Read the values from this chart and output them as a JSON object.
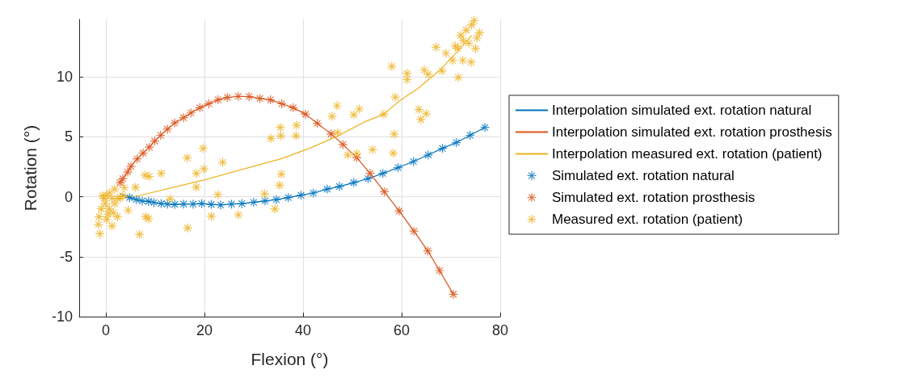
{
  "chart_data": {
    "type": "scatter",
    "xlabel": "Flexion (°)",
    "ylabel": "Rotation (°)",
    "xlim": [
      -5.4,
      80
    ],
    "ylim": [
      -10,
      14.8
    ],
    "xticks": [
      0,
      20,
      40,
      60,
      80
    ],
    "yticks": [
      -10,
      -5,
      0,
      5,
      10
    ],
    "grid": true,
    "legend": "right",
    "marker": "star",
    "series": [
      {
        "name": "Interpolation simulated ext. rotation natural",
        "type": "line",
        "marker": "none",
        "color": "#0072bd",
        "x": [
          2.9,
          4.82,
          6.2,
          7.4,
          8.66,
          9.76,
          11.24,
          12.5,
          13.98,
          15.79,
          17.7,
          19.46,
          21.4,
          23.3,
          25.5,
          27.6,
          30.0,
          32.3,
          34.6,
          37.0,
          39.6,
          42.1,
          44.9,
          47.4,
          50.3,
          53.2,
          56.2,
          59.3,
          62.4,
          65.4,
          68.3,
          71.1,
          73.9,
          76.9
        ],
        "values": [
          0.26,
          -0.07,
          -0.24,
          -0.35,
          -0.39,
          -0.48,
          -0.57,
          -0.61,
          -0.64,
          -0.61,
          -0.61,
          -0.57,
          -0.64,
          -0.68,
          -0.61,
          -0.57,
          -0.46,
          -0.35,
          -0.24,
          -0.07,
          0.13,
          0.31,
          0.64,
          0.86,
          1.18,
          1.51,
          1.95,
          2.43,
          2.94,
          3.49,
          4.04,
          4.52,
          5.13,
          5.79
        ]
      },
      {
        "name": "Interpolation simulated ext. rotation prosthesis",
        "type": "line",
        "marker": "none",
        "color": "#d95319",
        "x": [
          2.9,
          3.45,
          4.44,
          5.1,
          6.36,
          7.57,
          8.83,
          9.92,
          11.13,
          12.5,
          13.98,
          15.79,
          17.27,
          19.08,
          20.89,
          22.75,
          24.67,
          26.86,
          29.06,
          31.25,
          33.39,
          35.69,
          38.0,
          40.5,
          42.9,
          45.7,
          48.1,
          50.9,
          53.6,
          56.5,
          59.5,
          62.5,
          65.3,
          67.7,
          70.5
        ],
        "values": [
          1.18,
          1.51,
          2.06,
          2.54,
          3.16,
          3.64,
          4.14,
          4.65,
          5.13,
          5.64,
          6.16,
          6.6,
          7.0,
          7.43,
          7.76,
          8.09,
          8.29,
          8.38,
          8.36,
          8.2,
          8.09,
          7.76,
          7.43,
          6.89,
          6.12,
          5.24,
          4.36,
          3.27,
          1.95,
          0.42,
          -1.18,
          -2.87,
          -4.52,
          -6.16,
          -8.14
        ]
      },
      {
        "name": "Interpolation measured ext. rotation (patient)",
        "type": "line",
        "marker": "none",
        "color": "#edb120",
        "x": [
          3.0,
          6.2,
          19.9,
          35.8,
          41.3,
          46.8,
          52.4,
          56.4,
          59.5,
          63.2,
          67.6,
          70.9,
          74.2
        ],
        "values": [
          0.0,
          0.04,
          1.4,
          3.2,
          4.04,
          5.02,
          6.23,
          6.89,
          7.98,
          9.01,
          10.5,
          11.93,
          13.46
        ]
      },
      {
        "name": "Simulated ext. rotation natural",
        "color": "#0072bd",
        "x": [
          4.82,
          6.2,
          7.4,
          8.66,
          9.76,
          11.24,
          12.5,
          13.98,
          15.79,
          17.7,
          19.46,
          21.4,
          23.3,
          25.5,
          27.6,
          30.0,
          32.3,
          34.6,
          37.0,
          39.6,
          42.1,
          44.9,
          47.4,
          50.3,
          53.2,
          56.2,
          59.3,
          62.4,
          65.4,
          68.3,
          71.1,
          73.9,
          76.9
        ],
        "values": [
          -0.07,
          -0.24,
          -0.35,
          -0.39,
          -0.48,
          -0.57,
          -0.61,
          -0.64,
          -0.61,
          -0.61,
          -0.57,
          -0.64,
          -0.68,
          -0.61,
          -0.57,
          -0.46,
          -0.35,
          -0.24,
          -0.07,
          0.13,
          0.31,
          0.64,
          0.86,
          1.18,
          1.51,
          1.95,
          2.43,
          2.94,
          3.49,
          4.04,
          4.52,
          5.13,
          5.79
        ]
      },
      {
        "name": "Simulated ext. rotation prosthesis",
        "color": "#d95319",
        "x": [
          2.9,
          3.45,
          4.44,
          5.1,
          6.36,
          7.57,
          8.83,
          9.92,
          11.13,
          12.5,
          13.98,
          15.79,
          17.27,
          19.08,
          20.89,
          22.75,
          24.67,
          26.86,
          29.06,
          31.25,
          33.39,
          35.69,
          38.0,
          40.5,
          42.9,
          45.7,
          48.1,
          50.9,
          53.6,
          56.5,
          59.5,
          62.5,
          65.3,
          67.7,
          70.5
        ],
        "values": [
          1.18,
          1.51,
          2.06,
          2.54,
          3.16,
          3.64,
          4.14,
          4.65,
          5.13,
          5.64,
          6.16,
          6.6,
          7.0,
          7.43,
          7.76,
          8.09,
          8.29,
          8.38,
          8.36,
          8.2,
          8.09,
          7.76,
          7.43,
          6.89,
          6.12,
          5.24,
          4.36,
          3.27,
          1.95,
          0.42,
          -1.18,
          -2.87,
          -4.52,
          -6.16,
          -8.14
        ]
      },
      {
        "name": "Measured ext. rotation (patient)",
        "color": "#edb120",
        "x": [
          6.03,
          4.55,
          8.0,
          8.83,
          11.24,
          13.05,
          6.85,
          8.11,
          8.66,
          16.6,
          16.5,
          18.37,
          18.37,
          19.74,
          19.9,
          22.75,
          23.7,
          21.4,
          26.9,
          32.2,
          34.3,
          35.25,
          35.6,
          33.5,
          35.4,
          35.5,
          -1.2,
          -1.48,
          -1.37,
          -0.93,
          -0.38,
          0.16,
          0.71,
          1.26,
          1.81,
          2.36,
          1.26,
          0.44,
          2.9,
          3.73,
          3.45,
          -0.11,
          -0.66,
          1.81,
          2.36,
          0.71,
          1.54,
          0.16,
          38.7,
          38.6,
          46.9,
          45.9,
          47.0,
          50.3,
          51.4,
          49.1,
          50.9,
          54.1,
          56.4,
          58.3,
          58.5,
          58.7,
          58.0,
          61.1,
          61.1,
          63.5,
          65.0,
          63.9,
          64.6,
          65.4,
          68.2,
          67.0,
          69.0,
          71.5,
          70.35,
          72.4,
          74.1,
          70.9,
          72.0,
          73.1,
          74.2,
          74.7,
          75.3,
          73.6,
          75.8,
          75.0,
          72.5,
          71.4
        ],
        "values": [
          0.79,
          -1.12,
          1.8,
          1.69,
          1.95,
          -0.18,
          -3.14,
          -1.67,
          -1.84,
          -2.61,
          3.25,
          1.95,
          0.81,
          4.04,
          2.32,
          0.18,
          2.87,
          -1.62,
          -1.51,
          0.24,
          -1.01,
          0.96,
          1.89,
          4.87,
          5.79,
          5.09,
          -3.09,
          -2.32,
          -1.67,
          -1.01,
          -0.13,
          0.09,
          0.31,
          -0.13,
          -0.57,
          -1.67,
          -2.43,
          -1.45,
          -0.13,
          0.75,
          0.09,
          -0.57,
          0.09,
          0.64,
          -0.13,
          -1.01,
          -1.34,
          -1.89,
          5.96,
          5.09,
          7.59,
          6.71,
          5.35,
          6.84,
          7.32,
          3.49,
          3.6,
          3.93,
          6.89,
          3.64,
          5.22,
          8.31,
          10.88,
          10.29,
          9.78,
          7.28,
          6.93,
          6.45,
          10.57,
          10.22,
          10.5,
          12.48,
          11.97,
          9.96,
          11.38,
          11.38,
          11.23,
          12.59,
          13.46,
          13.9,
          14.34,
          14.7,
          13.25,
          12.81,
          13.68,
          12.37,
          13.03,
          12.37
        ]
      }
    ]
  }
}
